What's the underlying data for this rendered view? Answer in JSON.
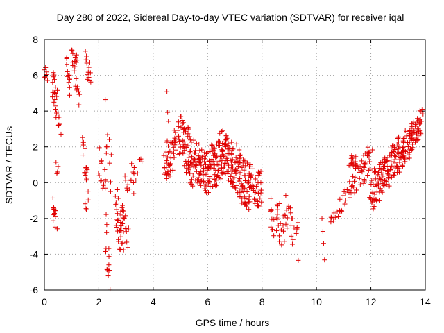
{
  "chart_data": {
    "type": "scatter",
    "title": "Day 280 of 2022, Sidereal Day-to-day VTEC variation (SDTVAR) for receiver iqal",
    "xlabel": "GPS time / hours",
    "ylabel": "SDTVAR / TECUs",
    "xlim": [
      0,
      14
    ],
    "ylim": [
      -6,
      8
    ],
    "x_ticks": [
      "0",
      "2",
      "4",
      "6",
      "8",
      "10",
      "12",
      "14"
    ],
    "y_ticks": [
      "-6",
      "-4",
      "-2",
      "0",
      "2",
      "4",
      "6",
      "8"
    ],
    "grid": true,
    "marker": "+",
    "color": "#e00000",
    "segments": [
      {
        "x0": 0.0,
        "x1": 0.1,
        "center": [
          6.2,
          6.0
        ],
        "spread": 0.3,
        "n": 8
      },
      {
        "x0": 0.3,
        "x1": 0.45,
        "center": [
          5.5,
          4.5
        ],
        "spread": 0.8,
        "n": 18
      },
      {
        "x0": 0.45,
        "x1": 0.6,
        "center": [
          3.8,
          3.1
        ],
        "spread": 0.4,
        "n": 8
      },
      {
        "x0": 0.3,
        "x1": 0.45,
        "center": [
          -1.5,
          -2.2
        ],
        "spread": 0.7,
        "n": 12
      },
      {
        "x0": 0.42,
        "x1": 0.5,
        "center": [
          1.3,
          0.4
        ],
        "spread": 0.6,
        "n": 4
      },
      {
        "x0": 0.8,
        "x1": 0.95,
        "center": [
          6.8,
          5.4
        ],
        "spread": 0.7,
        "n": 14
      },
      {
        "x0": 1.0,
        "x1": 1.2,
        "center": [
          7.3,
          6.2
        ],
        "spread": 0.7,
        "n": 14
      },
      {
        "x0": 1.15,
        "x1": 1.3,
        "center": [
          5.5,
          4.7
        ],
        "spread": 0.5,
        "n": 8
      },
      {
        "x0": 1.5,
        "x1": 1.7,
        "center": [
          6.8,
          6.0
        ],
        "spread": 0.6,
        "n": 14
      },
      {
        "x0": 1.4,
        "x1": 1.6,
        "center": [
          2.0,
          0.0
        ],
        "spread": 1.0,
        "n": 18
      },
      {
        "x0": 1.5,
        "x1": 1.55,
        "center": [
          -1.2,
          -1.6
        ],
        "spread": 0.2,
        "n": 3
      },
      {
        "x0": 2.0,
        "x1": 2.25,
        "center": [
          1.5,
          -0.5
        ],
        "spread": 1.0,
        "n": 16
      },
      {
        "x0": 2.25,
        "x1": 2.4,
        "center": [
          -2.5,
          -5.5
        ],
        "spread": 1.2,
        "n": 14
      },
      {
        "x0": 2.25,
        "x1": 2.45,
        "center": [
          3.5,
          0.0
        ],
        "spread": 1.2,
        "n": 10
      },
      {
        "x0": 2.6,
        "x1": 2.9,
        "center": [
          -1.0,
          -3.5
        ],
        "spread": 1.3,
        "n": 30
      },
      {
        "x0": 2.8,
        "x1": 3.1,
        "center": [
          -1.5,
          -3.0
        ],
        "spread": 0.8,
        "n": 20
      },
      {
        "x0": 3.0,
        "x1": 3.4,
        "center": [
          0.5,
          0.0
        ],
        "spread": 0.9,
        "n": 16
      },
      {
        "x0": 3.5,
        "x1": 3.6,
        "center": [
          1.2,
          1.0
        ],
        "spread": 0.3,
        "n": 3
      },
      {
        "x0": 4.4,
        "x1": 4.6,
        "center": [
          0.8,
          1.6
        ],
        "spread": 1.2,
        "n": 24
      },
      {
        "x0": 4.5,
        "x1": 4.55,
        "center": [
          4.8,
          3.5
        ],
        "spread": 0.3,
        "n": 3
      },
      {
        "x0": 4.6,
        "x1": 5.0,
        "center": [
          1.0,
          2.8
        ],
        "spread": 1.0,
        "n": 34
      },
      {
        "x0": 5.0,
        "x1": 5.5,
        "center": [
          2.6,
          1.0
        ],
        "spread": 1.3,
        "n": 70
      },
      {
        "x0": 5.5,
        "x1": 6.0,
        "center": [
          1.2,
          0.6
        ],
        "spread": 1.2,
        "n": 70
      },
      {
        "x0": 6.0,
        "x1": 6.5,
        "center": [
          0.6,
          1.5
        ],
        "spread": 1.3,
        "n": 70
      },
      {
        "x0": 6.5,
        "x1": 7.0,
        "center": [
          1.8,
          0.8
        ],
        "spread": 1.3,
        "n": 80
      },
      {
        "x0": 7.0,
        "x1": 7.5,
        "center": [
          1.0,
          -0.5
        ],
        "spread": 1.4,
        "n": 70
      },
      {
        "x0": 7.5,
        "x1": 8.0,
        "center": [
          0.0,
          -0.5
        ],
        "spread": 1.1,
        "n": 50
      },
      {
        "x0": 8.3,
        "x1": 8.8,
        "center": [
          -1.5,
          -2.8
        ],
        "spread": 1.2,
        "n": 30
      },
      {
        "x0": 8.8,
        "x1": 9.3,
        "center": [
          -1.5,
          -3.0
        ],
        "spread": 1.0,
        "n": 22
      },
      {
        "x0": 9.3,
        "x1": 9.35,
        "center": [
          -4.4,
          -4.4
        ],
        "spread": 0.1,
        "n": 1
      },
      {
        "x0": 10.2,
        "x1": 10.3,
        "center": [
          -2.5,
          -3.8
        ],
        "spread": 0.6,
        "n": 4
      },
      {
        "x0": 10.5,
        "x1": 10.8,
        "center": [
          -2.2,
          -1.5
        ],
        "spread": 0.5,
        "n": 8
      },
      {
        "x0": 10.8,
        "x1": 11.2,
        "center": [
          -1.5,
          -0.5
        ],
        "spread": 0.6,
        "n": 14
      },
      {
        "x0": 11.2,
        "x1": 11.5,
        "center": [
          1.3,
          1.2
        ],
        "spread": 0.4,
        "n": 16
      },
      {
        "x0": 11.2,
        "x1": 11.6,
        "center": [
          -0.5,
          0.5
        ],
        "spread": 0.6,
        "n": 16
      },
      {
        "x0": 11.6,
        "x1": 12.0,
        "center": [
          0.5,
          1.5
        ],
        "spread": 0.9,
        "n": 30
      },
      {
        "x0": 12.0,
        "x1": 12.5,
        "center": [
          -0.5,
          0.5
        ],
        "spread": 1.1,
        "n": 60
      },
      {
        "x0": 12.5,
        "x1": 13.0,
        "center": [
          0.5,
          1.5
        ],
        "spread": 1.0,
        "n": 60
      },
      {
        "x0": 13.0,
        "x1": 13.5,
        "center": [
          1.5,
          2.5
        ],
        "spread": 1.0,
        "n": 60
      },
      {
        "x0": 13.5,
        "x1": 13.9,
        "center": [
          2.5,
          3.6
        ],
        "spread": 0.8,
        "n": 50
      }
    ]
  }
}
